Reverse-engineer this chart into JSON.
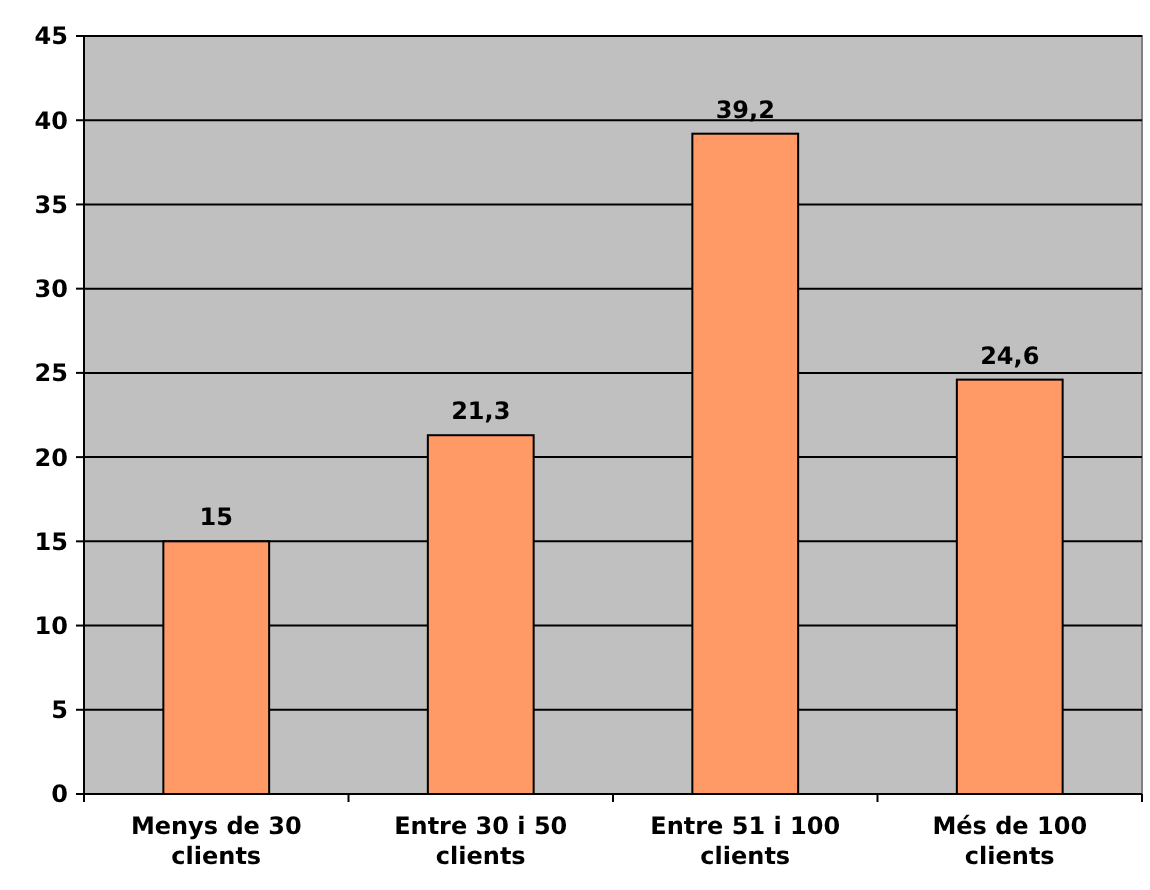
{
  "chart_data": {
    "type": "bar",
    "categories": [
      "Menys de 30 clients",
      "Entre 30 i 50 clients",
      "Entre 51 i 100 clients",
      "Més de 100 clients"
    ],
    "values": [
      15,
      21.3,
      39.2,
      24.6
    ],
    "value_labels": [
      "15",
      "21,3",
      "39,2",
      "24,6"
    ],
    "color": "#ff9966",
    "ylim": [
      0,
      45
    ],
    "yticks": [
      0,
      5,
      10,
      15,
      20,
      25,
      30,
      35,
      40,
      45
    ],
    "grid": "y"
  }
}
